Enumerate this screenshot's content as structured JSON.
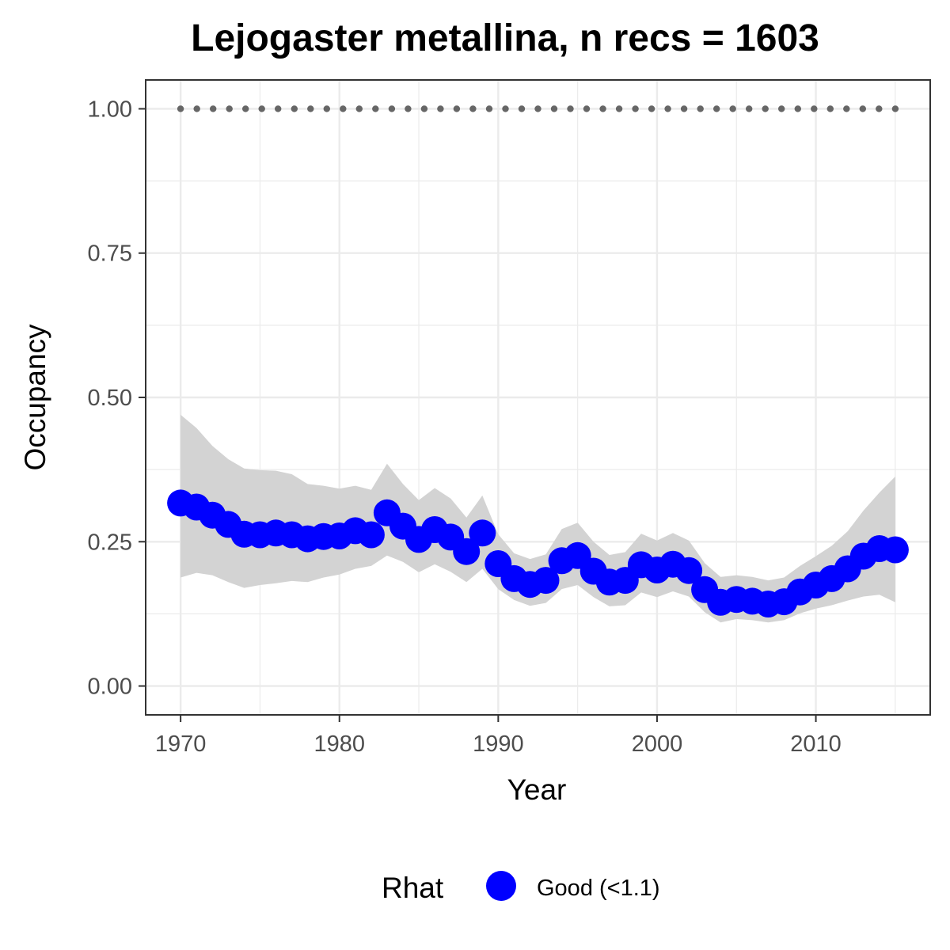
{
  "chart_data": {
    "type": "line",
    "title": "Lejogaster metallina, n recs = 1603",
    "xlabel": "Year",
    "ylabel": "Occupancy",
    "xlim": [
      1967.8,
      2017.2
    ],
    "ylim": [
      -0.05,
      1.05
    ],
    "x_ticks": [
      1970,
      1980,
      1990,
      2000,
      2010
    ],
    "x_tick_labels": [
      "1970",
      "1980",
      "1990",
      "2000",
      "2010"
    ],
    "y_ticks": [
      0,
      0.25,
      0.5,
      0.75,
      1.0
    ],
    "y_tick_labels": [
      "0.00",
      "0.25",
      "0.50",
      "0.75",
      "1.00"
    ],
    "grid": true,
    "x": [
      1970,
      1971,
      1972,
      1973,
      1974,
      1975,
      1976,
      1977,
      1978,
      1979,
      1980,
      1981,
      1982,
      1983,
      1984,
      1985,
      1986,
      1987,
      1988,
      1989,
      1990,
      1991,
      1992,
      1993,
      1994,
      1995,
      1996,
      1997,
      1998,
      1999,
      2000,
      2001,
      2002,
      2003,
      2004,
      2005,
      2006,
      2007,
      2008,
      2009,
      2010,
      2011,
      2012,
      2013,
      2014,
      2015
    ],
    "series": [
      {
        "name": "Good (<1.1)",
        "color": "#0000ff",
        "values": [
          0.317,
          0.31,
          0.296,
          0.28,
          0.263,
          0.262,
          0.265,
          0.262,
          0.255,
          0.259,
          0.26,
          0.269,
          0.262,
          0.3,
          0.277,
          0.254,
          0.271,
          0.258,
          0.233,
          0.265,
          0.212,
          0.186,
          0.176,
          0.183,
          0.217,
          0.226,
          0.199,
          0.18,
          0.183,
          0.21,
          0.201,
          0.211,
          0.2,
          0.167,
          0.145,
          0.15,
          0.147,
          0.142,
          0.146,
          0.163,
          0.175,
          0.186,
          0.203,
          0.225,
          0.238,
          0.236
        ],
        "lower": [
          0.188,
          0.196,
          0.192,
          0.18,
          0.17,
          0.175,
          0.178,
          0.182,
          0.18,
          0.188,
          0.193,
          0.203,
          0.208,
          0.226,
          0.215,
          0.197,
          0.211,
          0.198,
          0.18,
          0.203,
          0.168,
          0.149,
          0.139,
          0.144,
          0.168,
          0.175,
          0.154,
          0.138,
          0.14,
          0.162,
          0.154,
          0.164,
          0.155,
          0.128,
          0.11,
          0.116,
          0.114,
          0.11,
          0.114,
          0.126,
          0.134,
          0.14,
          0.148,
          0.155,
          0.158,
          0.145
        ],
        "upper": [
          0.47,
          0.447,
          0.416,
          0.393,
          0.377,
          0.374,
          0.373,
          0.367,
          0.35,
          0.347,
          0.342,
          0.347,
          0.34,
          0.385,
          0.35,
          0.322,
          0.343,
          0.325,
          0.292,
          0.33,
          0.263,
          0.23,
          0.22,
          0.228,
          0.272,
          0.283,
          0.25,
          0.227,
          0.232,
          0.264,
          0.252,
          0.265,
          0.252,
          0.213,
          0.189,
          0.192,
          0.189,
          0.183,
          0.188,
          0.208,
          0.225,
          0.243,
          0.268,
          0.304,
          0.335,
          0.363
        ],
        "reference": 1.0,
        "reference_color": "#666666"
      }
    ],
    "legend": {
      "title": "Rhat",
      "label": "Good (<1.1)",
      "position": "bottom"
    },
    "colors": {
      "points": "#0000ff",
      "ribbon": "#d3d3d3",
      "reference_dots": "#666666",
      "grid": "#ebebeb",
      "panel_border": "#333333"
    }
  }
}
